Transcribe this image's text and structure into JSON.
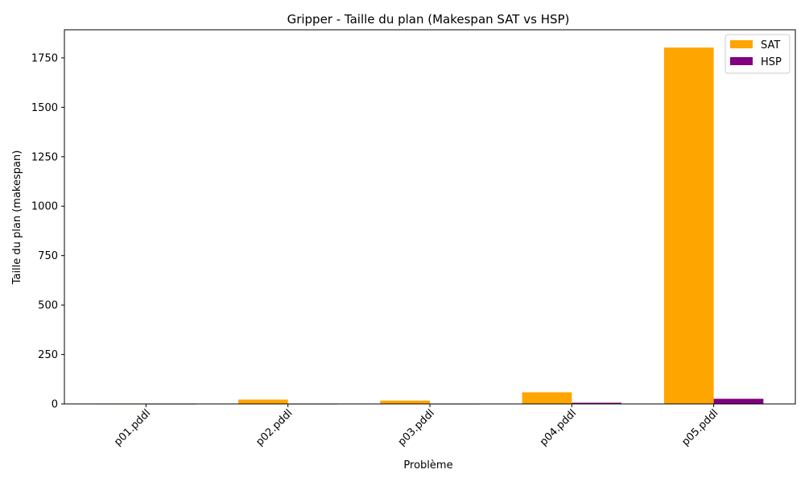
{
  "chart_data": {
    "type": "bar",
    "title": "Gripper - Taille du plan (Makespan SAT vs HSP)",
    "xlabel": "Problème",
    "ylabel": "Taille du plan (makespan)",
    "categories": [
      "p01.pddl",
      "p02.pddl",
      "p03.pddl",
      "p04.pddl",
      "p05.pddl"
    ],
    "series": [
      {
        "name": "SAT",
        "color": "#ffa500",
        "values": [
          0,
          22,
          17,
          59,
          1802
        ]
      },
      {
        "name": "HSP",
        "color": "#800080",
        "values": [
          0,
          0,
          0,
          6,
          26
        ]
      }
    ],
    "ylim": [
      0,
      1892
    ],
    "yticks": [
      0,
      250,
      500,
      750,
      1000,
      1250,
      1500,
      1750
    ],
    "ytick_labels": [
      "0",
      "250",
      "500",
      "750",
      "1000",
      "1250",
      "1500",
      "1750"
    ],
    "legend_position": "top-right",
    "grid": false
  }
}
